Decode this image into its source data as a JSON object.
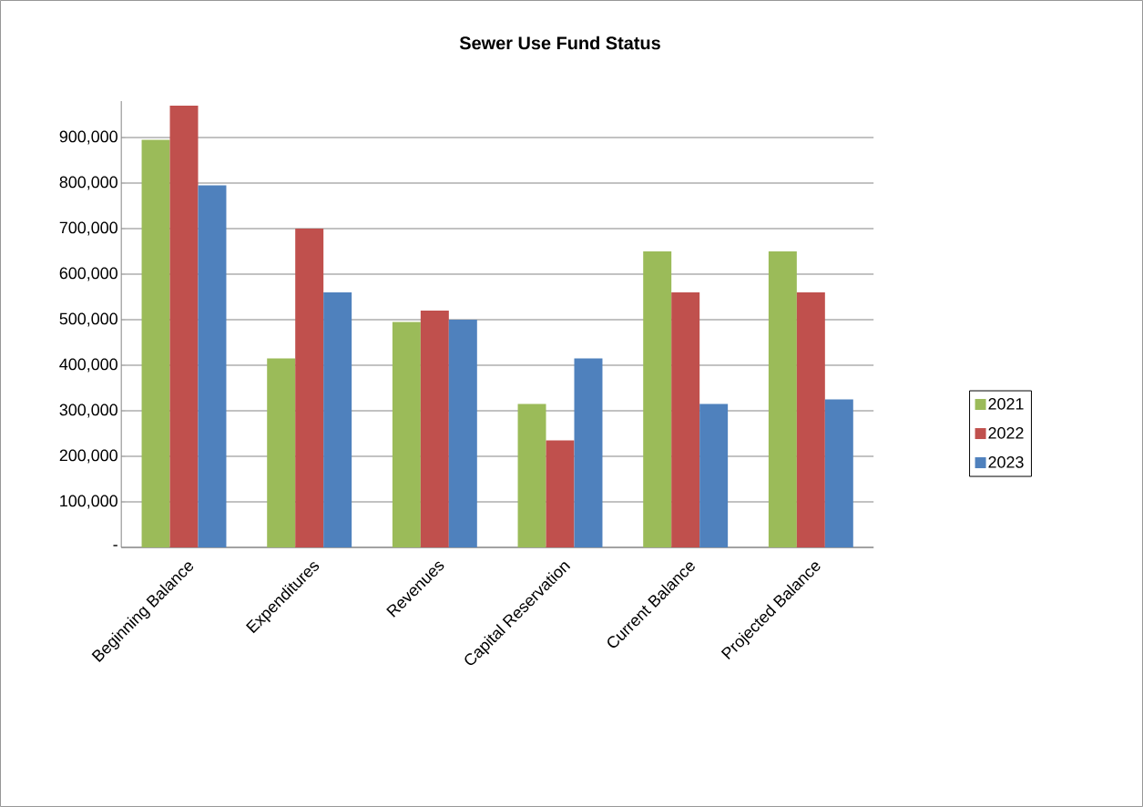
{
  "chart_data": {
    "type": "bar",
    "title": "Sewer Use Fund Status",
    "categories": [
      "Beginning Balance",
      "Expenditures",
      "Revenues",
      "Capital Reservation",
      "Current Balance",
      "Projected Balance"
    ],
    "series": [
      {
        "name": "2021",
        "color": "#9bbb59",
        "values": [
          895000,
          415000,
          495000,
          315000,
          650000,
          650000
        ]
      },
      {
        "name": "2022",
        "color": "#c0504d",
        "values": [
          970000,
          700000,
          520000,
          235000,
          560000,
          560000
        ]
      },
      {
        "name": "2023",
        "color": "#4f81bd",
        "values": [
          795000,
          560000,
          500000,
          415000,
          315000,
          325000
        ]
      }
    ],
    "ylim": [
      0,
      980000
    ],
    "yticks": [
      {
        "value": 0,
        "label": "-"
      },
      {
        "value": 100000,
        "label": "100,000"
      },
      {
        "value": 200000,
        "label": "200,000"
      },
      {
        "value": 300000,
        "label": "300,000"
      },
      {
        "value": 400000,
        "label": "400,000"
      },
      {
        "value": 500000,
        "label": "500,000"
      },
      {
        "value": 600000,
        "label": "600,000"
      },
      {
        "value": 700000,
        "label": "700,000"
      },
      {
        "value": 800000,
        "label": "800,000"
      },
      {
        "value": 900000,
        "label": "900,000"
      }
    ],
    "grid": "y",
    "legend": "right"
  }
}
